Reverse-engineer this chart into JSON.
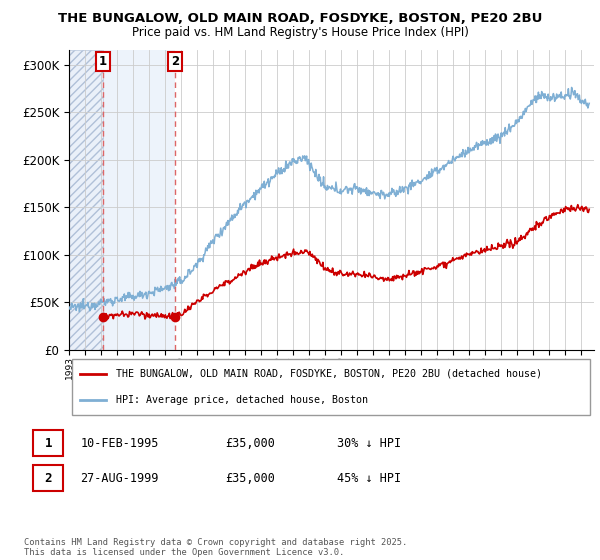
{
  "title_line1": "THE BUNGALOW, OLD MAIN ROAD, FOSDYKE, BOSTON, PE20 2BU",
  "title_line2": "Price paid vs. HM Land Registry's House Price Index (HPI)",
  "ytick_values": [
    0,
    50000,
    100000,
    150000,
    200000,
    250000,
    300000
  ],
  "ylim": [
    0,
    315000
  ],
  "xlim_start": 1993.0,
  "xlim_end": 2025.8,
  "purchase1_date": 1995.11,
  "purchase1_price": 35000,
  "purchase1_label": "1",
  "purchase2_date": 1999.65,
  "purchase2_price": 35000,
  "purchase2_label": "2",
  "legend_red": "THE BUNGALOW, OLD MAIN ROAD, FOSDYKE, BOSTON, PE20 2BU (detached house)",
  "legend_blue": "HPI: Average price, detached house, Boston",
  "footnote": "Contains HM Land Registry data © Crown copyright and database right 2025.\nThis data is licensed under the Open Government Licence v3.0.",
  "red_color": "#cc0000",
  "blue_color": "#7fafd4",
  "hatch_color": "#c0cfe8"
}
